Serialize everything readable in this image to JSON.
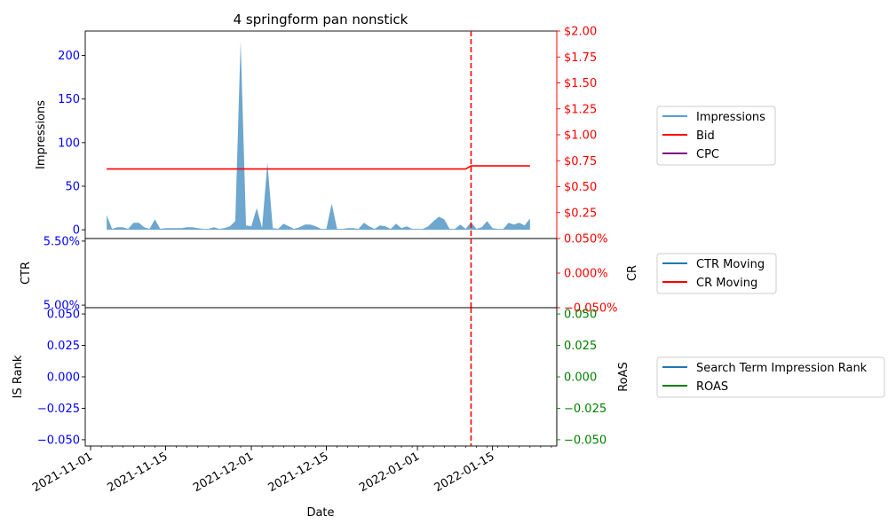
{
  "chart_data": {
    "type": "line",
    "title": "4 springform pan nonstick",
    "x_axis": {
      "label": "Date",
      "range": [
        "2021-10-31",
        "2022-01-27"
      ],
      "tick_labels": [
        "2021-11-01",
        "2021-11-15",
        "2021-12-01",
        "2021-12-15",
        "2022-01-01",
        "2022-01-15"
      ],
      "tick_dates": [
        "2021-11-01",
        "2021-11-15",
        "2021-12-01",
        "2021-12-15",
        "2022-01-01",
        "2022-01-15"
      ],
      "minor_tick_interval_days": 2
    },
    "vline_date": "2022-01-11",
    "panels": [
      {
        "name": "impressions-panel",
        "left_axis": {
          "label": "Impressions",
          "color": "#0000ff",
          "ylim": [
            -10,
            228
          ],
          "ticks": [
            0,
            50,
            100,
            150,
            200
          ],
          "tick_labels": [
            "0",
            "50",
            "100",
            "150",
            "200"
          ]
        },
        "right_axis": {
          "label": "",
          "color": "#ff0000",
          "ylim": [
            0.0,
            2.0
          ],
          "ticks": [
            0.25,
            0.5,
            0.75,
            1.0,
            1.25,
            1.5,
            1.75,
            2.0
          ],
          "tick_labels": [
            "$0.25",
            "$0.50",
            "$0.75",
            "$1.00",
            "$1.25",
            "$1.50",
            "$1.75",
            "$2.00"
          ]
        },
        "legend": {
          "placement": "right",
          "entries": [
            {
              "label": "Impressions",
              "color": "#5b9bd5"
            },
            {
              "label": "Bid",
              "color": "#ff0000"
            },
            {
              "label": "CPC",
              "color": "#800080"
            }
          ]
        },
        "series": [
          {
            "name": "Impressions",
            "axis": "left",
            "style": "area",
            "color": "#1f77b4",
            "x": [
              "2021-11-04",
              "2021-11-05",
              "2021-11-06",
              "2021-11-07",
              "2021-11-08",
              "2021-11-09",
              "2021-11-10",
              "2021-11-11",
              "2021-11-12",
              "2021-11-13",
              "2021-11-14",
              "2021-11-15",
              "2021-11-16",
              "2021-11-17",
              "2021-11-18",
              "2021-11-19",
              "2021-11-20",
              "2021-11-21",
              "2021-11-22",
              "2021-11-23",
              "2021-11-24",
              "2021-11-25",
              "2021-11-26",
              "2021-11-27",
              "2021-11-28",
              "2021-11-29",
              "2021-11-30",
              "2021-12-01",
              "2021-12-02",
              "2021-12-03",
              "2021-12-04",
              "2021-12-05",
              "2021-12-06",
              "2021-12-07",
              "2021-12-08",
              "2021-12-09",
              "2021-12-10",
              "2021-12-11",
              "2021-12-12",
              "2021-12-13",
              "2021-12-14",
              "2021-12-15",
              "2021-12-16",
              "2021-12-17",
              "2021-12-18",
              "2021-12-19",
              "2021-12-20",
              "2021-12-21",
              "2021-12-22",
              "2021-12-23",
              "2021-12-24",
              "2021-12-25",
              "2021-12-26",
              "2021-12-27",
              "2021-12-28",
              "2021-12-29",
              "2021-12-30",
              "2021-12-31",
              "2022-01-01",
              "2022-01-02",
              "2022-01-03",
              "2022-01-04",
              "2022-01-05",
              "2022-01-06",
              "2022-01-07",
              "2022-01-08",
              "2022-01-09",
              "2022-01-10",
              "2022-01-11",
              "2022-01-12",
              "2022-01-13",
              "2022-01-14",
              "2022-01-15",
              "2022-01-16",
              "2022-01-17",
              "2022-01-18",
              "2022-01-19",
              "2022-01-20",
              "2022-01-21",
              "2022-01-22"
            ],
            "values": [
              17,
              1,
              3,
              3,
              1,
              8,
              8,
              3,
              1,
              12,
              1,
              2,
              2,
              2,
              2,
              3,
              3,
              2,
              1,
              1,
              3,
              1,
              2,
              4,
              10,
              217,
              5,
              4,
              25,
              2,
              77,
              2,
              1,
              7,
              4,
              1,
              3,
              6,
              6,
              4,
              1,
              1,
              30,
              1,
              1,
              2,
              2,
              1,
              8,
              4,
              1,
              5,
              4,
              1,
              7,
              2,
              4,
              1,
              1,
              1,
              4,
              10,
              15,
              12,
              1,
              1,
              6,
              1,
              9,
              1,
              3,
              10,
              2,
              1,
              1,
              8,
              6,
              8,
              5,
              13
            ]
          },
          {
            "name": "Bid",
            "axis": "right",
            "style": "line",
            "color": "#ff0000",
            "x": [
              "2021-11-04",
              "2022-01-10",
              "2022-01-11",
              "2022-01-22"
            ],
            "values": [
              0.67,
              0.67,
              0.7,
              0.7
            ]
          }
        ]
      },
      {
        "name": "ctr-panel",
        "left_axis": {
          "label": "CTR",
          "color": "#0000ff",
          "ylim": [
            0.0498,
            0.0552
          ],
          "ticks": [
            0.05,
            0.055
          ],
          "tick_labels": [
            "5.00%",
            "5.50%"
          ]
        },
        "right_axis": {
          "label": "CR",
          "color": "#ff0000",
          "ylim": [
            -0.0005,
            0.0005
          ],
          "ticks": [
            -0.0005,
            0.0,
            0.0005
          ],
          "tick_labels": [
            "−0.050%",
            "0.000%",
            "0.050%"
          ]
        },
        "legend": {
          "placement": "right",
          "entries": [
            {
              "label": "CTR Moving",
              "color": "#1f77b4"
            },
            {
              "label": "CR Moving",
              "color": "#ff0000"
            }
          ]
        },
        "series": []
      },
      {
        "name": "rank-panel",
        "left_axis": {
          "label": "IS Rank",
          "color": "#0000ff",
          "ylim": [
            -0.055,
            0.055
          ],
          "ticks": [
            -0.05,
            -0.025,
            0.0,
            0.025,
            0.05
          ],
          "tick_labels": [
            "−0.050",
            "−0.025",
            "0.000",
            "0.025",
            "0.050"
          ]
        },
        "right_axis": {
          "label": "RoAS",
          "color": "#008000",
          "ylim": [
            -0.055,
            0.055
          ],
          "ticks": [
            -0.05,
            -0.025,
            0.0,
            0.025,
            0.05
          ],
          "tick_labels": [
            "−0.050",
            "−0.025",
            "0.000",
            "0.025",
            "0.050"
          ]
        },
        "legend": {
          "placement": "right",
          "entries": [
            {
              "label": "Search Term Impression Rank",
              "color": "#1f77b4"
            },
            {
              "label": "ROAS",
              "color": "#008000"
            }
          ]
        },
        "series": []
      }
    ]
  }
}
